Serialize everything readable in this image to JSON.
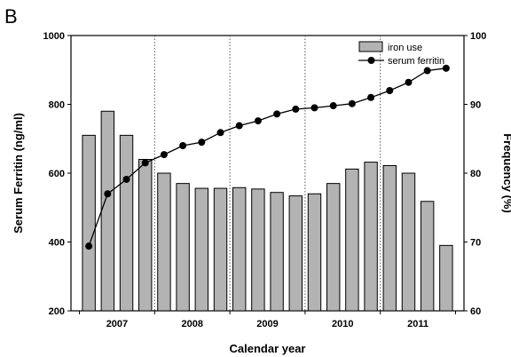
{
  "panel_label": "B",
  "chart_data": {
    "type": "bar",
    "xlabel": "Calendar year",
    "ylabel_left": "Serum Ferritin (ng/ml)",
    "ylabel_right": "Frequency (%)",
    "ylim_left": [
      200,
      1000
    ],
    "ylim_right": [
      60,
      100
    ],
    "left_ticks": [
      "200",
      "400",
      "600",
      "800",
      "1000"
    ],
    "right_ticks": [
      "60",
      "70",
      "80",
      "90",
      "100"
    ],
    "year_labels": [
      "2007",
      "2008",
      "2009",
      "2010",
      "2011"
    ],
    "legend_placement": "top-right",
    "grid": false,
    "series": [
      {
        "name": "iron use",
        "kind": "bar",
        "axis": "right",
        "color": "#b3b3b3",
        "values": [
          85.5,
          89,
          85.5,
          82,
          80,
          78.5,
          77.8,
          77.8,
          77.9,
          77.7,
          77.2,
          76.7,
          77,
          78.5,
          80.6,
          81.6,
          81.1,
          80,
          75.9,
          69.5
        ]
      },
      {
        "name": "serum ferritin",
        "kind": "line",
        "axis": "left",
        "color": "#000000",
        "values": [
          388,
          540,
          582,
          630,
          654,
          680,
          690,
          718,
          738,
          752,
          772,
          786,
          790,
          796,
          802,
          820,
          840,
          864,
          898,
          905
        ]
      }
    ]
  }
}
